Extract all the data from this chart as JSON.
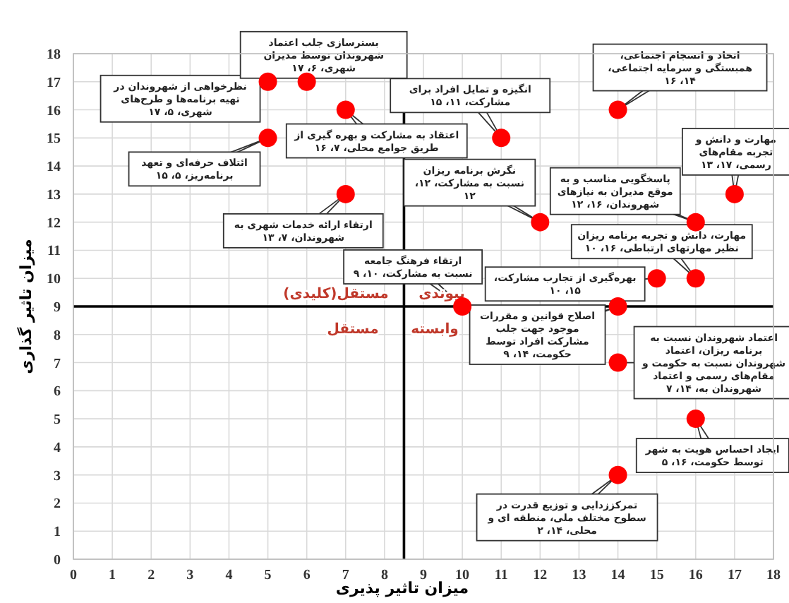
{
  "chart_data": {
    "type": "scatter",
    "xlabel": "میزان تاثیر پذیری",
    "ylabel": "میزان تاثیر گذاری",
    "x": [
      5,
      6,
      7,
      5,
      7,
      11,
      14,
      17,
      12,
      16,
      16,
      15,
      10,
      14,
      14,
      16,
      14
    ],
    "series": [
      {
        "color": "#ff0000",
        "values": [
          17,
          17,
          16,
          15,
          13,
          15,
          16,
          13,
          12,
          12,
          10,
          10,
          9,
          9,
          7,
          5,
          3
        ]
      }
    ],
    "marker": "circle",
    "xlim": [
      0,
      18
    ],
    "ylim": [
      0,
      18
    ],
    "xticks": [
      0,
      1,
      2,
      3,
      4,
      5,
      6,
      7,
      8,
      9,
      10,
      11,
      12,
      13,
      14,
      15,
      16,
      17,
      18
    ],
    "yticks": [
      0,
      1,
      2,
      3,
      4,
      5,
      6,
      7,
      8,
      9,
      10,
      11,
      12,
      13,
      14,
      15,
      16,
      17,
      18
    ],
    "grid": true,
    "ref_lines": [
      {
        "axis": "y",
        "value": 9,
        "color": "#000000"
      },
      {
        "axis": "x",
        "value": 8.5,
        "color": "#000000"
      }
    ],
    "annotations": [
      {
        "text": "نظرخواهی از شهروندان در تهیه برنامه‌ها و طرح‌های شهری، ۵، ۱۷",
        "x": 5,
        "y": 17
      },
      {
        "text": "بسترسازی جلب اعتماد شهروندان توسط مدیران شهری، ۶، ۱۷",
        "x": 6,
        "y": 17
      },
      {
        "text": "اعتقاد به مشارکت و بهره گیری از طریق جوامع محلی، ۷، ۱۶",
        "x": 7,
        "y": 16
      },
      {
        "text": "ائتلاف حرفه‌ای و تعهد برنامه‌ریز، ۵، ۱۵",
        "x": 5,
        "y": 15
      },
      {
        "text": "ارتقاء ارائه خدمات شهری به شهروندان، ۷، ۱۳",
        "x": 7,
        "y": 13
      },
      {
        "text": "انگیزه و تمایل افراد برای مشارکت، ۱۱، ۱۵",
        "x": 11,
        "y": 15
      },
      {
        "text": "اتحاد و انسجام اجتماعی، همبستگی و سرمایه اجتماعی، ۱۴، ۱۶",
        "x": 14,
        "y": 16
      },
      {
        "text": "مهارت و دانش و تجربه مقام‌های رسمی، ۱۷، ۱۳",
        "x": 17,
        "y": 13
      },
      {
        "text": "نگرش برنامه ریزان نسبت به مشارکت، ۱۲، ۱۲",
        "x": 12,
        "y": 12
      },
      {
        "text": "پاسخگویی مناسب و به موقع مدیران به نیازهای شهروندان، ۱۶، ۱۲",
        "x": 16,
        "y": 12
      },
      {
        "text": "مهارت، دانش و تجربه برنامه ریزان نظیر مهارتهای ارتباطی، ۱۶، ۱۰",
        "x": 16,
        "y": 10
      },
      {
        "text": "بهره‌گیری از تجارب مشارکت، ۱۵، ۱۰",
        "x": 15,
        "y": 10
      },
      {
        "text": "ارتقاء فرهنگ جامعه نسبت به مشارکت، ۱۰، ۹",
        "x": 10,
        "y": 9
      },
      {
        "text": "اصلاح قوانین و مقررات موجود جهت جلب مشارکت افراد توسط حکومت، ۱۴، ۹",
        "x": 14,
        "y": 9
      },
      {
        "text": "اعتماد شهروندان نسبت به برنامه ریزان، اعتماد شهروندان نسبت به حکومت و مقام‌های رسمی و اعتماد شهروندان به، ۱۴، ۷",
        "x": 14,
        "y": 7
      },
      {
        "text": "ایجاد احساس هویت به شهر توسط حکومت، ۱۶، ۵",
        "x": 16,
        "y": 5
      },
      {
        "text": "تمرکززدایی و توزیع قدرت در سطوح مختلف ملی، منطقه ای و محلی، ۱۴، ۲",
        "x": 14,
        "y": 3
      },
      "پیوندی",
      "مستقل(کلیدی)",
      "مستقل",
      "وابسته"
    ]
  }
}
